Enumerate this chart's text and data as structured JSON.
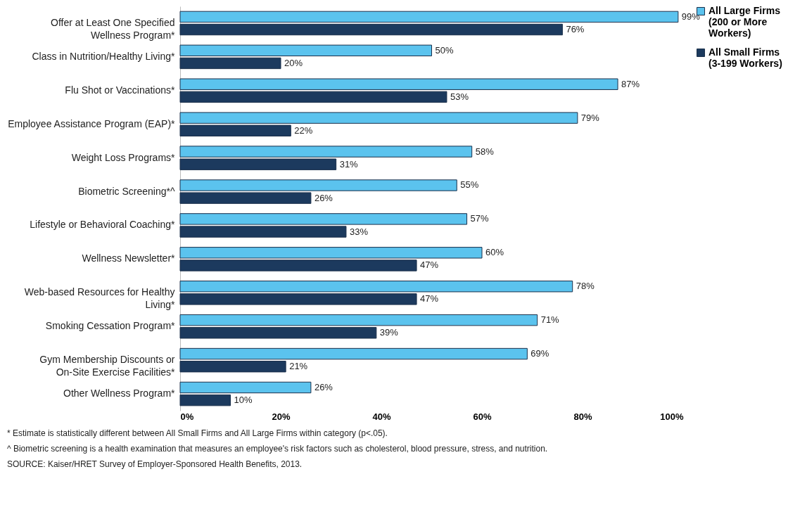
{
  "chart_data": {
    "type": "bar",
    "orientation": "horizontal",
    "categories": [
      "Offer at Least One Specified Wellness Program*",
      "Class in Nutrition/Healthy Living*",
      "Flu Shot or Vaccinations*",
      "Employee Assistance Program (EAP)*",
      "Weight Loss Programs*",
      "Biometric Screening*^",
      "Lifestyle or Behavioral Coaching*",
      "Wellness Newsletter*",
      "Web-based Resources for Healthy Living*",
      "Smoking Cessation Program*",
      "Gym Membership Discounts or On-Site Exercise Facilities*",
      "Other Wellness Program*"
    ],
    "series": [
      {
        "name": "All Large Firms (200 or More Workers)",
        "color": "#5bc3ee",
        "values": [
          99,
          50,
          87,
          79,
          58,
          55,
          57,
          60,
          78,
          71,
          69,
          26
        ],
        "value_labels": [
          "99%",
          "50%",
          "87%",
          "79%",
          "58%",
          "55%",
          "57%",
          "60%",
          "78%",
          "71%",
          "69%",
          "26%"
        ]
      },
      {
        "name": "All Small Firms (3-199 Workers)",
        "color": "#1c3a5e",
        "values": [
          76,
          20,
          53,
          22,
          31,
          26,
          33,
          47,
          47,
          39,
          21,
          10
        ],
        "value_labels": [
          "76%",
          "20%",
          "53%",
          "22%",
          "31%",
          "26%",
          "33%",
          "47%",
          "47%",
          "39%",
          "21%",
          "10%"
        ]
      }
    ],
    "xlim": [
      0,
      100
    ],
    "xticks": [
      {
        "value": 0,
        "label": "0%"
      },
      {
        "value": 20,
        "label": "20%"
      },
      {
        "value": 40,
        "label": "40%"
      },
      {
        "value": 60,
        "label": "60%"
      },
      {
        "value": 80,
        "label": "80%"
      },
      {
        "value": 100,
        "label": "100%"
      }
    ],
    "grid": false,
    "legend": "right",
    "annotations": [
      "* Estimate is statistically different between All Small Firms and All Large Firms within category (p<.05).",
      "^ Biometric screening is a health examination that measures an employee's risk factors such as cholesterol, blood pressure, stress, and nutrition.",
      "SOURCE: Kaiser/HRET Survey of Employer-Sponsored Health Benefits, 2013."
    ]
  }
}
